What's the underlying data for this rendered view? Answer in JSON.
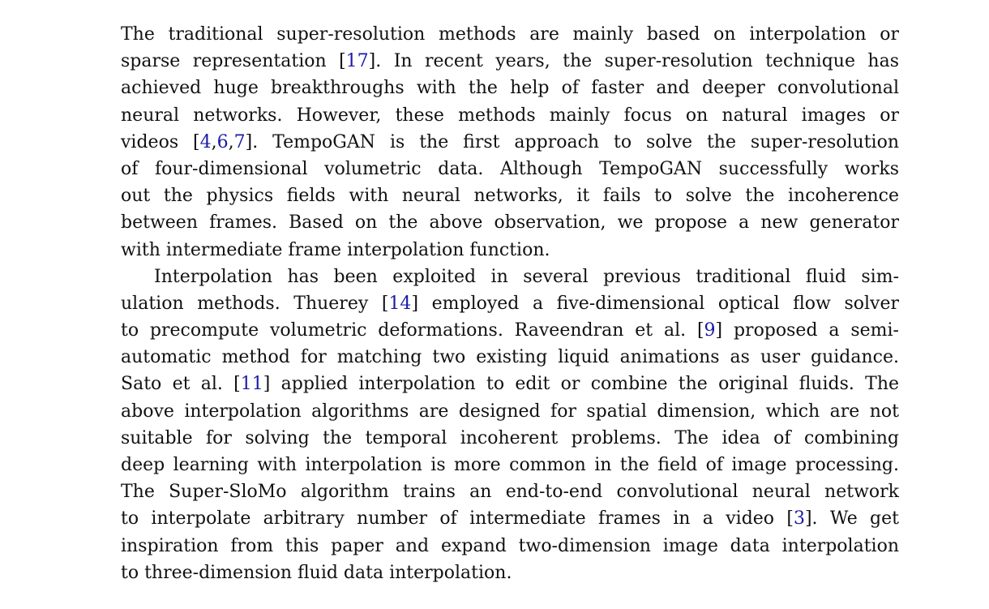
{
  "paragraphs": [
    {
      "lines": [
        [
          "The traditional super-resolution methods are mainly based on interpolation or"
        ],
        [
          "sparse representation [",
          {
            "cite": "17"
          },
          "]. In recent years, the super-resolution technique has"
        ],
        [
          "achieved huge breakthroughs with the help of faster and deeper convolutional"
        ],
        [
          "neural networks. However, these methods mainly focus on natural images or"
        ],
        [
          "videos [",
          {
            "cite": "4"
          },
          ",",
          {
            "cite": "6"
          },
          ",",
          {
            "cite": "7"
          },
          "]. TempoGAN is the first approach to solve the super-resolution"
        ],
        [
          "of four-dimensional volumetric data. Although TempoGAN successfully works"
        ],
        [
          "out the physics fields with neural networks, it fails to solve the incoherence"
        ],
        [
          "between frames. Based on the above observation, we propose a new generator"
        ],
        [
          "with intermediate frame interpolation function."
        ]
      ]
    },
    {
      "lines": [
        [
          "Interpolation has been exploited in several previous traditional fluid sim-"
        ],
        [
          "ulation methods. Thuerey [",
          {
            "cite": "14"
          },
          "] employed a five-dimensional optical flow solver"
        ],
        [
          "to precompute volumetric deformations. Raveendran et al. [",
          {
            "cite": "9"
          },
          "] proposed a semi-"
        ],
        [
          "automatic method for matching two existing liquid animations as user guidance."
        ],
        [
          "Sato et al. [",
          {
            "cite": "11"
          },
          "] applied interpolation to edit or combine the original fluids. The"
        ],
        [
          "above interpolation algorithms are designed for spatial dimension, which are not"
        ],
        [
          "suitable for solving the temporal incoherent problems. The idea of combining"
        ],
        [
          "deep learning with interpolation is more common in the field of image processing."
        ],
        [
          "The Super-SloMo algorithm trains an end-to-end convolutional neural network"
        ],
        [
          "to interpolate arbitrary number of intermediate frames in a video [",
          {
            "cite": "3"
          },
          "]. We get"
        ],
        [
          "inspiration from this paper and expand two-dimension image data interpolation"
        ],
        [
          "to three-dimension fluid data interpolation."
        ]
      ]
    }
  ],
  "colors": {
    "text": "#111111",
    "citation": "#1a1aa6",
    "background": "#ffffff"
  }
}
